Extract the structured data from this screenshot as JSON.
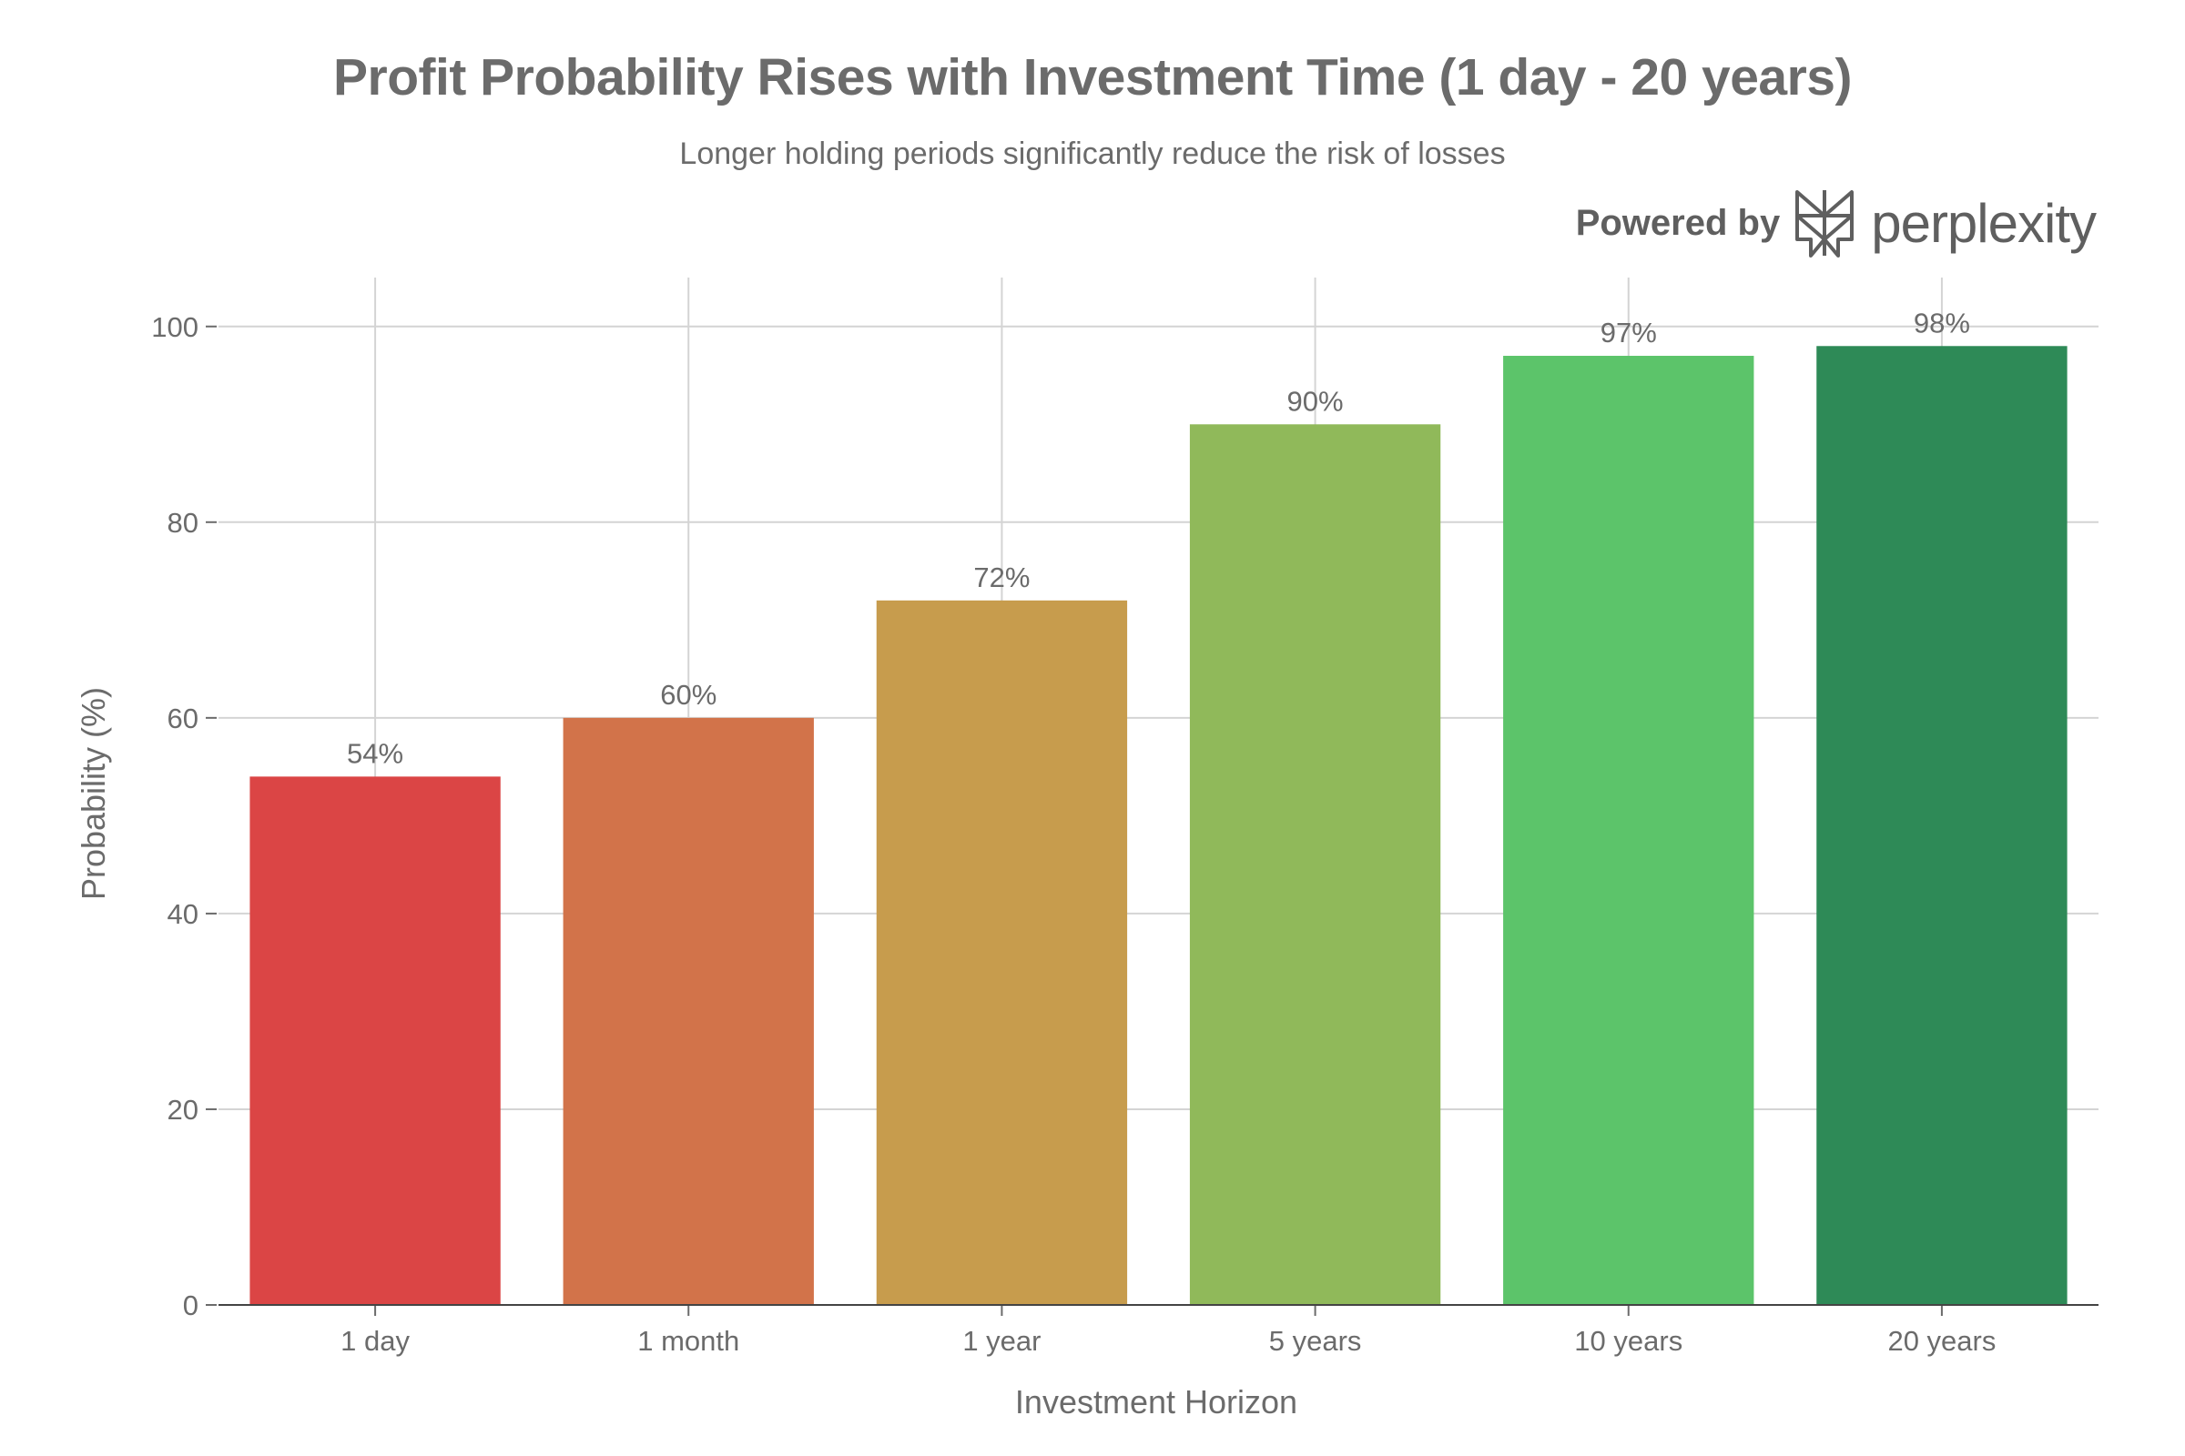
{
  "header": {
    "title": "Profit Probability Rises with Investment Time (1 day - 20 years)",
    "subtitle": "Longer holding periods significantly reduce the risk of losses"
  },
  "branding": {
    "prefix": "Powered by",
    "name": "perplexity",
    "icon": "perplexity-logo-icon"
  },
  "chart_data": {
    "type": "bar",
    "title": "Profit Probability Rises with Investment Time (1 day - 20 years)",
    "subtitle": "Longer holding periods significantly reduce the risk of losses",
    "xlabel": "Investment Horizon",
    "ylabel": "Probability (%)",
    "categories": [
      "1 day",
      "1 month",
      "1 year",
      "5 years",
      "10 years",
      "20 years"
    ],
    "values": [
      54,
      60,
      72,
      90,
      97,
      98
    ],
    "data_labels": [
      "54%",
      "60%",
      "72%",
      "90%",
      "97%",
      "98%"
    ],
    "colors": [
      "#db4545",
      "#d2734a",
      "#c79c4d",
      "#90b95a",
      "#5cc46a",
      "#2e8a57"
    ],
    "ylim": [
      0,
      105
    ],
    "yticks": [
      0,
      20,
      40,
      60,
      80,
      100
    ],
    "grid": true,
    "legend": "none"
  }
}
